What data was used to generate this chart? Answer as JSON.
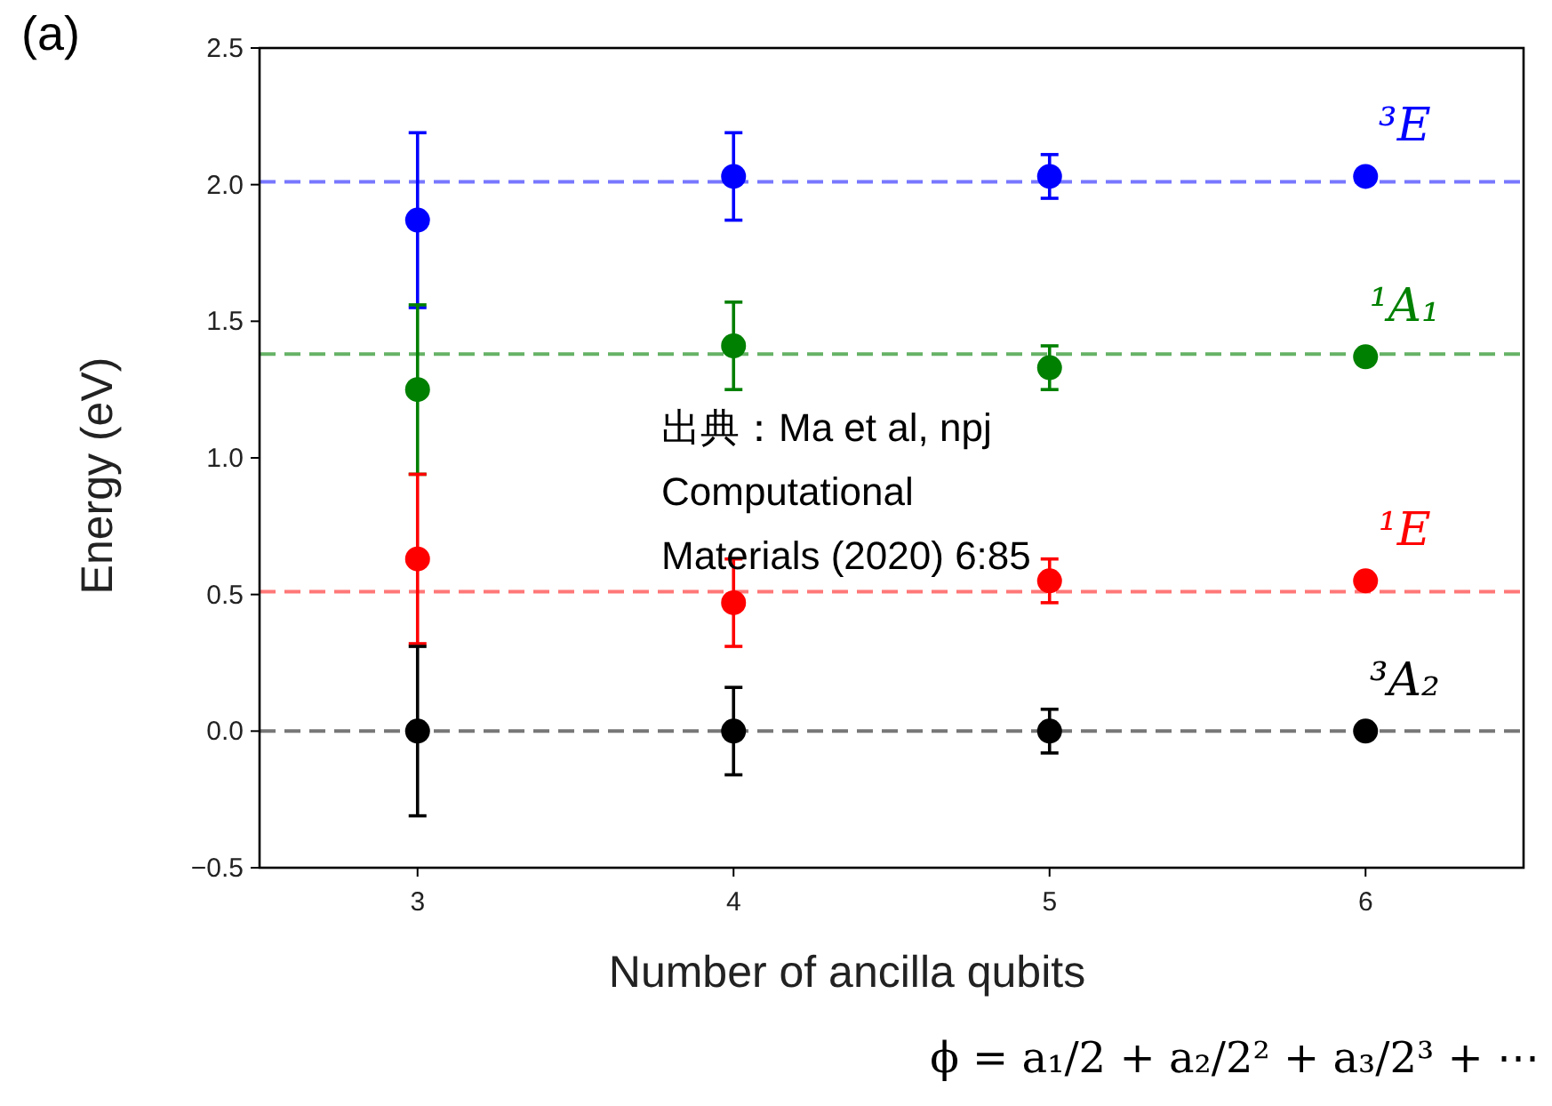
{
  "chart_data": {
    "type": "scatter",
    "xlabel": "Number of ancilla qubits",
    "ylabel": "Energy (eV)",
    "x": [
      3,
      4,
      5,
      6
    ],
    "xlim": [
      2.5,
      6.5
    ],
    "xticks": [
      3,
      4,
      5,
      6
    ],
    "ylim": [
      -0.5,
      2.5
    ],
    "yticks": [
      {
        "value": -0.5,
        "label": "−0.5"
      },
      {
        "value": 0,
        "label": "0.0"
      },
      {
        "value": 0.5,
        "label": "0.5"
      },
      {
        "value": 1,
        "label": "1.0"
      },
      {
        "value": 1.5,
        "label": "1.5"
      },
      {
        "value": 2,
        "label": "2.0"
      },
      {
        "value": 2.5,
        "label": "2.5"
      }
    ],
    "marker": "circle",
    "grid": false,
    "series": [
      {
        "name": "³E",
        "color": "#0000ff",
        "values": [
          1.87,
          2.03,
          2.03,
          2.03
        ],
        "errors": [
          0.32,
          0.16,
          0.08,
          null
        ]
      },
      {
        "name": "¹A₁",
        "color": "#008000",
        "values": [
          1.25,
          1.41,
          1.33,
          1.37
        ],
        "errors": [
          0.31,
          0.16,
          0.08,
          null
        ]
      },
      {
        "name": "¹E",
        "color": "#ff0000",
        "values": [
          0.63,
          0.47,
          0.55,
          0.55
        ],
        "errors": [
          0.31,
          0.16,
          0.08,
          null
        ]
      },
      {
        "name": "³A₂",
        "color": "#000000",
        "values": [
          0,
          0,
          0,
          0
        ],
        "errors": [
          0.31,
          0.16,
          0.08,
          null
        ]
      }
    ],
    "ref_lines": [
      {
        "axis": "y",
        "value": 2.01,
        "color": "#7777ff",
        "line_style": "dashed"
      },
      {
        "axis": "y",
        "value": 1.38,
        "color": "#66b266",
        "line_style": "dashed"
      },
      {
        "axis": "y",
        "value": 0.51,
        "color": "#ff7777",
        "line_style": "dashed"
      },
      {
        "axis": "y",
        "value": 0,
        "color": "#777777",
        "line_style": "dashed"
      }
    ],
    "annotations": [
      "(a)",
      "出典：Ma et al, npj Computational Materials (2020) 6:85",
      "ϕ = a₁/2 + a₂/2² + a₃/2³ + ⋯"
    ]
  }
}
